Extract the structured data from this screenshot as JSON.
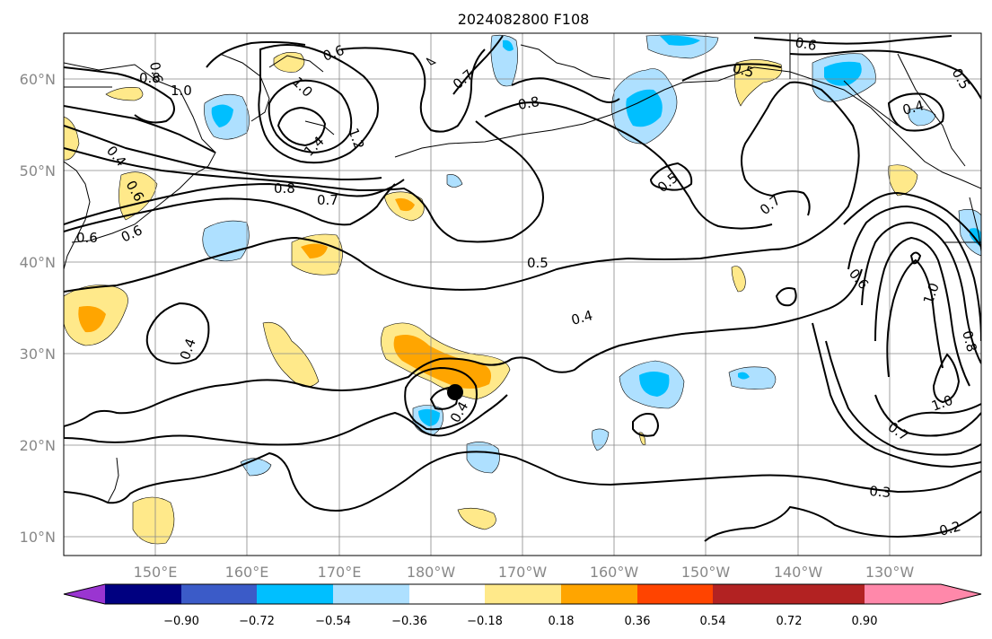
{
  "title": "2024082800 F108",
  "lon_ticks": [
    "150°E",
    "160°E",
    "170°E",
    "180°W",
    "170°W",
    "160°W",
    "150°W",
    "140°W",
    "130°W"
  ],
  "lat_ticks": [
    "60°N",
    "50°N",
    "40°N",
    "30°N",
    "20°N",
    "10°N"
  ],
  "colorbar": {
    "colors": [
      "#9a35d1",
      "#000080",
      "#3b5bc8",
      "#00bfff",
      "#aee0ff",
      "#ffffff",
      "#ffe98a",
      "#ffa500",
      "#ff4400",
      "#b22222",
      "#ff88aa"
    ],
    "tick_labels": [
      "−0.90",
      "−0.72",
      "−0.54",
      "−0.36",
      "−0.18",
      "0.18",
      "0.36",
      "0.54",
      "0.72",
      "0.90"
    ]
  },
  "contour_labels": [
    "0.6",
    "0.8",
    "1.0",
    "1.0",
    "1.2",
    "1.4",
    "0.6",
    "0.7",
    "0.8",
    "0.6",
    "0.5",
    "0.5",
    "0.4",
    "0.4",
    "0.6",
    "0.8",
    "0.7",
    "0.6",
    "0.6",
    "0.5",
    "0.7",
    "0.5",
    "0.4",
    "0.4",
    "0.4",
    "0.6",
    "1.0",
    "0.8",
    "1.0",
    "0.7",
    "0.3",
    "0.2"
  ],
  "marker": "storm center"
}
